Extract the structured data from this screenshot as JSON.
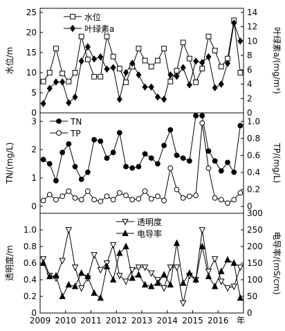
{
  "chart_data": [
    {
      "type": "line",
      "y_label": "水位/m",
      "y2_label": "叶绿素a/(mg/m³)",
      "legend": "upper left",
      "x": [
        2009.125,
        2009.375,
        2009.625,
        2009.875,
        2010.125,
        2010.375,
        2010.625,
        2010.875,
        2011.125,
        2011.375,
        2011.625,
        2011.875,
        2012.125,
        2012.375,
        2012.625,
        2012.875,
        2013.125,
        2013.375,
        2013.625,
        2013.875,
        2014.125,
        2014.375,
        2014.625,
        2014.875,
        2015.125,
        2015.375,
        2015.625,
        2015.875,
        2016.125,
        2016.375,
        2016.625,
        2016.875
      ],
      "xlim": [
        2009,
        2017
      ],
      "ylim": [
        0,
        26
      ],
      "yticks": [
        0,
        5,
        10,
        15,
        20,
        25
      ],
      "y2lim": [
        0,
        14.56
      ],
      "y2ticks": [
        0,
        2,
        4,
        6,
        8,
        10,
        12,
        14
      ],
      "series": [
        {
          "name": "水位",
          "color": "#000",
          "marker": "square-open",
          "values": [
            7.8,
            10,
            16,
            9.8,
            7.8,
            10,
            19,
            13.3,
            9,
            9,
            19,
            14,
            11,
            7.6,
            11.5,
            16,
            13,
            11.5,
            13,
            16,
            7.8,
            10.5,
            17.5,
            13.5,
            7.6,
            11,
            19,
            15.5,
            11.5,
            13.5,
            23,
            10
          ]
        },
        {
          "name": "叶绿素a",
          "color": "#000",
          "marker": "diamond",
          "axis": "y2",
          "values": [
            1.3,
            3.4,
            4.3,
            4.3,
            1.4,
            2.2,
            7.2,
            9.2,
            7.5,
            7.8,
            6.1,
            6.3,
            1.9,
            5.6,
            6.9,
            5.3,
            3.6,
            3.6,
            2.2,
            1.9,
            5.3,
            5.1,
            6.3,
            3.9,
            7.2,
            7,
            7.8,
            3.5,
            4,
            6.9,
            12.5,
            10
          ]
        }
      ]
    },
    {
      "type": "line",
      "y_label": "TN/(mg/L)",
      "y2_label": "TP/(mg/L)",
      "legend": "upper left",
      "x": [
        2009.125,
        2009.375,
        2009.625,
        2009.875,
        2010.125,
        2010.375,
        2010.625,
        2010.875,
        2011.125,
        2011.375,
        2011.625,
        2011.875,
        2012.125,
        2012.375,
        2012.625,
        2012.875,
        2013.125,
        2013.375,
        2013.625,
        2013.875,
        2014.125,
        2014.375,
        2014.625,
        2014.875,
        2015.125,
        2015.375,
        2015.625,
        2015.875,
        2016.125,
        2016.375,
        2016.625,
        2016.875
      ],
      "xlim": [
        2009,
        2017
      ],
      "ylim": [
        -0.25,
        3.3
      ],
      "yticks": [
        0,
        1,
        2,
        3
      ],
      "y2lim": [
        -0.08,
        1.1
      ],
      "y2ticks": [
        0,
        0.2,
        0.4,
        0.6,
        0.8,
        {
          "value": 1,
          "label": "1.0"
        }
      ],
      "series": [
        {
          "name": "TN",
          "color": "#000",
          "marker": "circle",
          "values": [
            1.65,
            1.5,
            0.9,
            1.9,
            2.2,
            1.4,
            0.95,
            1.2,
            2.35,
            2.3,
            1.7,
            1.9,
            2.6,
            1.4,
            1.35,
            1.4,
            1.85,
            1.7,
            1.5,
            2.15,
            2.7,
            1.8,
            1.7,
            1.6,
            3.2,
            3.2,
            1.95,
            1.6,
            1.25,
            1.55,
            1.2,
            2.85
          ]
        },
        {
          "name": "TP",
          "color": "#000",
          "marker": "circle-open",
          "axis": "y2",
          "values": [
            0.07,
            0.14,
            0.08,
            0.12,
            0.18,
            0.1,
            0.08,
            0.18,
            0.08,
            0.06,
            0.12,
            0.08,
            0.16,
            0.13,
            0.08,
            0.09,
            0.18,
            0.09,
            0.12,
            0.07,
            0.45,
            0.2,
            0.1,
            0.12,
            0.13,
            0.98,
            0.45,
            0.1,
            0.08,
            0.04,
            0.08,
            0.16
          ]
        }
      ]
    },
    {
      "type": "line",
      "y_label": "透明度/m",
      "y2_label": "电导率/(mS/cm)",
      "legend": "upper center",
      "x_label": "年",
      "x": [
        2009.125,
        2009.375,
        2009.625,
        2009.875,
        2010.125,
        2010.375,
        2010.625,
        2010.875,
        2011.125,
        2011.375,
        2011.625,
        2011.875,
        2012.125,
        2012.375,
        2012.625,
        2012.875,
        2013.125,
        2013.375,
        2013.625,
        2013.875,
        2014.125,
        2014.375,
        2014.625,
        2014.875,
        2015.125,
        2015.375,
        2015.625,
        2015.875,
        2016.125,
        2016.375,
        2016.625,
        2016.875
      ],
      "xlim": [
        2009,
        2017
      ],
      "xticks": [
        2009,
        2010,
        2011,
        2012,
        2013,
        2014,
        2015,
        2016
      ],
      "ylim": [
        0,
        1.2
      ],
      "yticks": [
        0,
        0.2,
        0.4,
        0.6,
        0.8,
        {
          "value": 1,
          "label": "1.0"
        }
      ],
      "y2lim": [
        0,
        300
      ],
      "y2ticks": [
        0,
        50,
        100,
        150,
        200,
        250,
        300
      ],
      "series": [
        {
          "name": "透明度",
          "color": "#000",
          "marker": "triangle-down-open",
          "values": [
            0.65,
            0.45,
            0.42,
            0.63,
            1,
            0.55,
            0.3,
            0.42,
            0.7,
            0.52,
            0.6,
            0.82,
            0.45,
            0.38,
            0.52,
            0.55,
            0.55,
            0.48,
            0.4,
            0.3,
            0.55,
            0.55,
            0.12,
            0.45,
            0.4,
            1,
            0.5,
            0.65,
            0.38,
            0.3,
            0.32,
            0.55
          ]
        },
        {
          "name": "电导率",
          "color": "#000",
          "marker": "triangle-up",
          "axis": "y2",
          "values": [
            150,
            110,
            112,
            50,
            85,
            80,
            120,
            110,
            60,
            45,
            140,
            100,
            180,
            200,
            105,
            115,
            85,
            80,
            90,
            115,
            85,
            210,
            90,
            120,
            100,
            200,
            110,
            80,
            125,
            160,
            150,
            45
          ]
        }
      ]
    }
  ]
}
